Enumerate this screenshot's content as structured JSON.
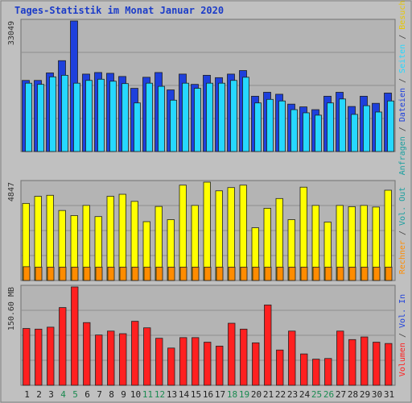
{
  "title": "Tages-Statistik im Monat Januar 2020",
  "colors": {
    "background": "#c0c0c0",
    "panel": "#b4b4b4",
    "grid": "#8e8e8e",
    "anfragen": "#1e40dc",
    "dateien": "#26d8ff",
    "seiten": "#1ca0a0",
    "besuche": "#ffff00",
    "rechner": "#ff8c00",
    "volumen_in": "#ff2020",
    "title": "#1c3cc8"
  },
  "chart_data": [
    {
      "type": "bar",
      "panel": "hits",
      "ymax_label": "33049",
      "ylim": [
        0,
        33049
      ],
      "categories": [
        "1",
        "2",
        "3",
        "4",
        "5",
        "6",
        "7",
        "8",
        "9",
        "10",
        "11",
        "12",
        "13",
        "14",
        "15",
        "16",
        "17",
        "18",
        "19",
        "20",
        "21",
        "22",
        "23",
        "24",
        "25",
        "26",
        "27",
        "28",
        "29",
        "30",
        "31"
      ],
      "weekend_days": [
        "4",
        "5",
        "11",
        "12",
        "18",
        "19",
        "25",
        "26"
      ],
      "right_label_parts": [
        {
          "text": "Anfragen",
          "color": "#1ca0a0"
        },
        {
          "text": " / ",
          "color": "#444444"
        },
        {
          "text": "Dateien",
          "color": "#1e40dc"
        },
        {
          "text": " / ",
          "color": "#444444"
        },
        {
          "text": "Seiten",
          "color": "#26d8ff"
        },
        {
          "text": " / ",
          "color": "#444444"
        },
        {
          "text": "Besuche",
          "color": "#e8c800"
        }
      ],
      "series": [
        {
          "name": "Anfragen",
          "values": [
            18000,
            18000,
            19900,
            23000,
            33049,
            19600,
            20000,
            19800,
            19000,
            16000,
            18800,
            20000,
            15600,
            19600,
            17000,
            19300,
            18700,
            19600,
            20500,
            14000,
            15000,
            14500,
            12000,
            11300,
            10600,
            14000,
            15000,
            11400,
            14000,
            12200,
            14800
          ]
        },
        {
          "name": "Dateien",
          "values": [
            17300,
            17000,
            18900,
            19300,
            17300,
            18000,
            18300,
            17800,
            17200,
            12300,
            17300,
            16500,
            13000,
            17300,
            16000,
            17300,
            17300,
            18000,
            18800,
            12300,
            13200,
            12800,
            10600,
            9800,
            9200,
            12300,
            13300,
            9400,
            11600,
            10000,
            12800
          ]
        }
      ]
    },
    {
      "type": "bar",
      "panel": "visits",
      "ymax_label": "4847",
      "ylim": [
        0,
        4847
      ],
      "right_label_parts": [
        {
          "text": "Rechner",
          "color": "#ff8c00"
        },
        {
          "text": " / ",
          "color": "#444444"
        },
        {
          "text": "Vol. Out",
          "color": "#1ca0a0"
        }
      ],
      "series": [
        {
          "name": "Besuche",
          "values": [
            3800,
            4150,
            4200,
            3450,
            3200,
            3700,
            3150,
            4150,
            4250,
            3900,
            2900,
            3650,
            3000,
            4700,
            3700,
            4847,
            4420,
            4580,
            4700,
            2600,
            3560,
            4040,
            3000,
            4600,
            3700,
            2880,
            3700,
            3640,
            3700,
            3620,
            4450
          ]
        },
        {
          "name": "Rechner",
          "values": [
            680,
            660,
            660,
            660,
            660,
            660,
            660,
            660,
            660,
            660,
            660,
            660,
            660,
            660,
            660,
            660,
            660,
            660,
            660,
            660,
            660,
            660,
            660,
            660,
            660,
            660,
            660,
            660,
            660,
            660,
            660
          ]
        }
      ]
    },
    {
      "type": "bar",
      "panel": "volume",
      "ymax_label": "150.60 MB",
      "ylim": [
        0,
        150.6
      ],
      "right_label_parts": [
        {
          "text": "Volumen",
          "color": "#ff2020"
        },
        {
          "text": " / ",
          "color": "#444444"
        },
        {
          "text": "Vol. In",
          "color": "#1e40dc"
        }
      ],
      "series": [
        {
          "name": "Volumen",
          "values": [
            87,
            86,
            89,
            119,
            150.6,
            96,
            77,
            83,
            79,
            98,
            88,
            72,
            57,
            73,
            73,
            66,
            60,
            95,
            86,
            65,
            123,
            54,
            83,
            48,
            40,
            41,
            83,
            70,
            74,
            66,
            64
          ]
        }
      ]
    }
  ]
}
